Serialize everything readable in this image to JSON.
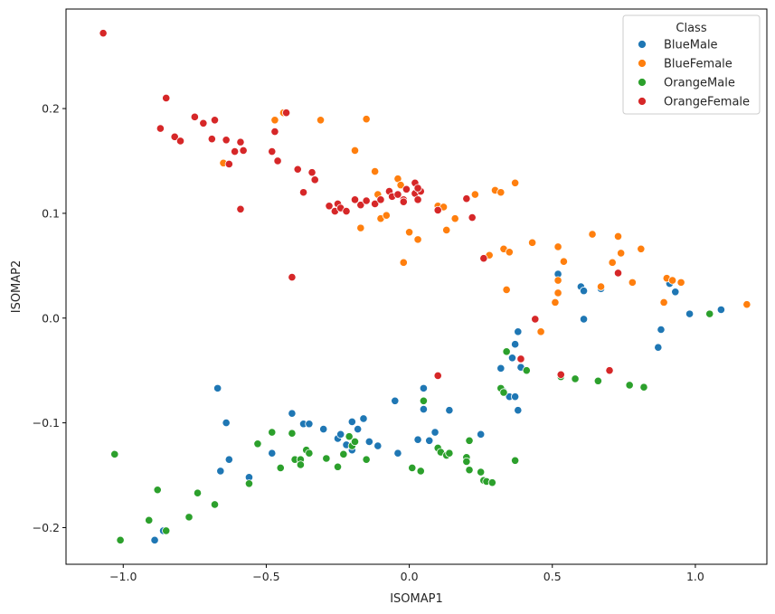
{
  "chart_data": {
    "type": "scatter",
    "title": "",
    "xlabel": "ISOMAP1",
    "ylabel": "ISOMAP2",
    "xlim": [
      -1.2,
      1.25
    ],
    "ylim": [
      -0.235,
      0.295
    ],
    "xticks": [
      -1.0,
      -0.5,
      0.0,
      0.5,
      1.0
    ],
    "xtick_labels": [
      "−1.0",
      "−0.5",
      "0.0",
      "0.5",
      "1.0"
    ],
    "yticks": [
      -0.2,
      -0.1,
      0.0,
      0.1,
      0.2
    ],
    "ytick_labels": [
      "−0.2",
      "−0.1",
      "0.0",
      "0.1",
      "0.2"
    ],
    "grid": false,
    "legend": {
      "title": "Class",
      "placement": "top-right"
    },
    "series": [
      {
        "name": "BlueMale",
        "color": "#1f77b4",
        "points": [
          [
            -0.89,
            -0.212
          ],
          [
            -0.86,
            -0.203
          ],
          [
            -0.67,
            -0.067
          ],
          [
            -0.66,
            -0.146
          ],
          [
            -0.64,
            -0.1
          ],
          [
            -0.63,
            -0.135
          ],
          [
            -0.56,
            -0.152
          ],
          [
            -0.48,
            -0.129
          ],
          [
            -0.41,
            -0.091
          ],
          [
            -0.37,
            -0.101
          ],
          [
            -0.35,
            -0.101
          ],
          [
            -0.3,
            -0.106
          ],
          [
            -0.25,
            -0.115
          ],
          [
            -0.24,
            -0.111
          ],
          [
            -0.22,
            -0.121
          ],
          [
            -0.2,
            -0.126
          ],
          [
            -0.2,
            -0.099
          ],
          [
            -0.18,
            -0.106
          ],
          [
            -0.16,
            -0.096
          ],
          [
            -0.14,
            -0.118
          ],
          [
            -0.11,
            -0.122
          ],
          [
            -0.05,
            -0.079
          ],
          [
            -0.04,
            -0.129
          ],
          [
            0.03,
            -0.116
          ],
          [
            0.05,
            -0.067
          ],
          [
            0.05,
            -0.087
          ],
          [
            0.07,
            -0.117
          ],
          [
            0.09,
            -0.109
          ],
          [
            0.14,
            -0.088
          ],
          [
            0.25,
            -0.111
          ],
          [
            0.32,
            -0.048
          ],
          [
            0.33,
            -0.07
          ],
          [
            0.35,
            -0.075
          ],
          [
            0.36,
            -0.038
          ],
          [
            0.37,
            -0.025
          ],
          [
            0.38,
            -0.013
          ],
          [
            0.37,
            -0.075
          ],
          [
            0.38,
            -0.088
          ],
          [
            0.39,
            -0.047
          ],
          [
            0.52,
            0.042
          ],
          [
            0.6,
            0.03
          ],
          [
            0.61,
            0.026
          ],
          [
            0.61,
            -0.001
          ],
          [
            0.67,
            0.028
          ],
          [
            0.87,
            -0.028
          ],
          [
            0.88,
            -0.011
          ],
          [
            0.91,
            0.033
          ],
          [
            0.93,
            0.025
          ],
          [
            0.98,
            0.004
          ],
          [
            1.09,
            0.008
          ]
        ]
      },
      {
        "name": "BlueFemale",
        "color": "#ff7f0e",
        "points": [
          [
            -0.65,
            0.148
          ],
          [
            -0.47,
            0.189
          ],
          [
            -0.44,
            0.196
          ],
          [
            -0.31,
            0.189
          ],
          [
            -0.19,
            0.16
          ],
          [
            -0.17,
            0.086
          ],
          [
            -0.15,
            0.19
          ],
          [
            -0.12,
            0.14
          ],
          [
            -0.11,
            0.118
          ],
          [
            -0.1,
            0.095
          ],
          [
            -0.08,
            0.098
          ],
          [
            -0.04,
            0.133
          ],
          [
            -0.03,
            0.127
          ],
          [
            -0.02,
            0.053
          ],
          [
            0.0,
            0.082
          ],
          [
            0.03,
            0.075
          ],
          [
            0.1,
            0.107
          ],
          [
            0.12,
            0.106
          ],
          [
            0.13,
            0.084
          ],
          [
            0.16,
            0.095
          ],
          [
            0.23,
            0.118
          ],
          [
            0.28,
            0.06
          ],
          [
            0.3,
            0.122
          ],
          [
            0.32,
            0.12
          ],
          [
            0.33,
            0.066
          ],
          [
            0.34,
            0.027
          ],
          [
            0.35,
            0.063
          ],
          [
            0.37,
            0.129
          ],
          [
            0.43,
            0.072
          ],
          [
            0.46,
            -0.013
          ],
          [
            0.51,
            0.015
          ],
          [
            0.52,
            0.036
          ],
          [
            0.52,
            0.024
          ],
          [
            0.52,
            0.068
          ],
          [
            0.54,
            0.054
          ],
          [
            0.64,
            0.08
          ],
          [
            0.67,
            0.03
          ],
          [
            0.71,
            0.053
          ],
          [
            0.73,
            0.078
          ],
          [
            0.74,
            0.062
          ],
          [
            0.78,
            0.034
          ],
          [
            0.81,
            0.066
          ],
          [
            0.89,
            0.015
          ],
          [
            0.9,
            0.038
          ],
          [
            0.92,
            0.036
          ],
          [
            0.95,
            0.034
          ],
          [
            1.18,
            0.013
          ]
        ]
      },
      {
        "name": "OrangeMale",
        "color": "#2ca02c",
        "points": [
          [
            -1.03,
            -0.13
          ],
          [
            -1.01,
            -0.212
          ],
          [
            -0.91,
            -0.193
          ],
          [
            -0.88,
            -0.164
          ],
          [
            -0.85,
            -0.203
          ],
          [
            -0.77,
            -0.19
          ],
          [
            -0.74,
            -0.167
          ],
          [
            -0.68,
            -0.178
          ],
          [
            -0.56,
            -0.158
          ],
          [
            -0.53,
            -0.12
          ],
          [
            -0.48,
            -0.109
          ],
          [
            -0.45,
            -0.143
          ],
          [
            -0.41,
            -0.11
          ],
          [
            -0.4,
            -0.135
          ],
          [
            -0.38,
            -0.135
          ],
          [
            -0.38,
            -0.14
          ],
          [
            -0.36,
            -0.126
          ],
          [
            -0.35,
            -0.129
          ],
          [
            -0.29,
            -0.134
          ],
          [
            -0.25,
            -0.142
          ],
          [
            -0.23,
            -0.13
          ],
          [
            -0.21,
            -0.113
          ],
          [
            -0.2,
            -0.122
          ],
          [
            -0.19,
            -0.118
          ],
          [
            -0.15,
            -0.135
          ],
          [
            0.01,
            -0.143
          ],
          [
            0.04,
            -0.146
          ],
          [
            0.05,
            -0.079
          ],
          [
            0.1,
            -0.124
          ],
          [
            0.11,
            -0.128
          ],
          [
            0.13,
            -0.131
          ],
          [
            0.14,
            -0.129
          ],
          [
            0.2,
            -0.133
          ],
          [
            0.2,
            -0.137
          ],
          [
            0.21,
            -0.145
          ],
          [
            0.21,
            -0.117
          ],
          [
            0.25,
            -0.147
          ],
          [
            0.26,
            -0.155
          ],
          [
            0.27,
            -0.156
          ],
          [
            0.29,
            -0.157
          ],
          [
            0.32,
            -0.067
          ],
          [
            0.33,
            -0.071
          ],
          [
            0.34,
            -0.032
          ],
          [
            0.37,
            -0.136
          ],
          [
            0.41,
            -0.05
          ],
          [
            0.53,
            -0.055
          ],
          [
            0.53,
            -0.056
          ],
          [
            0.58,
            -0.058
          ],
          [
            0.66,
            -0.06
          ],
          [
            0.77,
            -0.064
          ],
          [
            0.82,
            -0.066
          ],
          [
            1.05,
            0.004
          ]
        ]
      },
      {
        "name": "OrangeFemale",
        "color": "#d62728",
        "points": [
          [
            -1.07,
            0.272
          ],
          [
            -0.87,
            0.181
          ],
          [
            -0.85,
            0.21
          ],
          [
            -0.82,
            0.173
          ],
          [
            -0.8,
            0.169
          ],
          [
            -0.75,
            0.192
          ],
          [
            -0.72,
            0.186
          ],
          [
            -0.69,
            0.171
          ],
          [
            -0.68,
            0.189
          ],
          [
            -0.64,
            0.17
          ],
          [
            -0.63,
            0.147
          ],
          [
            -0.61,
            0.159
          ],
          [
            -0.59,
            0.168
          ],
          [
            -0.59,
            0.104
          ],
          [
            -0.58,
            0.16
          ],
          [
            -0.48,
            0.159
          ],
          [
            -0.47,
            0.178
          ],
          [
            -0.46,
            0.15
          ],
          [
            -0.43,
            0.196
          ],
          [
            -0.41,
            0.039
          ],
          [
            -0.39,
            0.142
          ],
          [
            -0.37,
            0.12
          ],
          [
            -0.34,
            0.139
          ],
          [
            -0.33,
            0.132
          ],
          [
            -0.28,
            0.107
          ],
          [
            -0.26,
            0.102
          ],
          [
            -0.25,
            0.109
          ],
          [
            -0.24,
            0.105
          ],
          [
            -0.22,
            0.102
          ],
          [
            -0.19,
            0.113
          ],
          [
            -0.17,
            0.108
          ],
          [
            -0.15,
            0.112
          ],
          [
            -0.12,
            0.109
          ],
          [
            -0.1,
            0.113
          ],
          [
            -0.07,
            0.121
          ],
          [
            -0.06,
            0.116
          ],
          [
            -0.04,
            0.118
          ],
          [
            -0.02,
            0.113
          ],
          [
            -0.02,
            0.111
          ],
          [
            -0.01,
            0.123
          ],
          [
            0.02,
            0.119
          ],
          [
            0.03,
            0.113
          ],
          [
            0.04,
            0.121
          ],
          [
            0.02,
            0.129
          ],
          [
            0.03,
            0.124
          ],
          [
            0.1,
            0.103
          ],
          [
            0.2,
            0.114
          ],
          [
            0.22,
            0.096
          ],
          [
            0.26,
            0.057
          ],
          [
            0.44,
            -0.001
          ],
          [
            0.39,
            -0.039
          ],
          [
            0.1,
            -0.055
          ],
          [
            0.53,
            -0.054
          ],
          [
            0.7,
            -0.05
          ],
          [
            0.73,
            0.043
          ]
        ]
      }
    ]
  }
}
